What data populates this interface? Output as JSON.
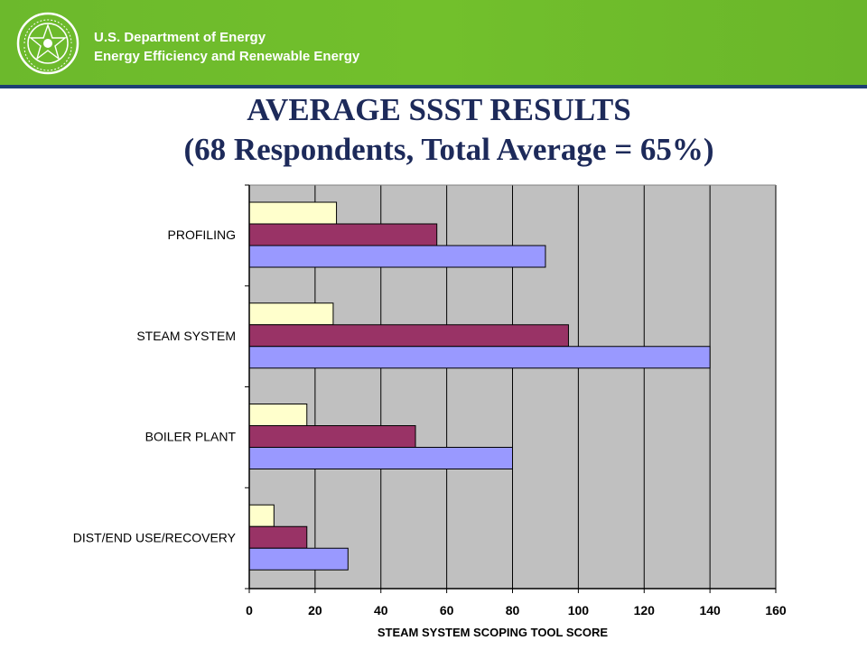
{
  "header": {
    "agency_line1": "U.S. Department of Energy",
    "agency_line2": "Energy Efficiency and Renewable Energy",
    "banner_color": "#70bd2c",
    "rule_color": "#1d3f73"
  },
  "slide": {
    "title_line1": "AVERAGE SSST RESULTS",
    "title_line2": "(68 Respondents, Total Average = 65%)"
  },
  "chart_data": {
    "type": "bar",
    "orientation": "horizontal",
    "categories": [
      "PROFILING",
      "STEAM SYSTEM",
      "BOILER PLANT",
      "DIST/END USE/RECOVERY"
    ],
    "series": [
      {
        "values": [
          26.5,
          25.5,
          17.5,
          7.5
        ],
        "color": "#ffffcc"
      },
      {
        "values": [
          57,
          97,
          50.5,
          17.5
        ],
        "color": "#993366"
      },
      {
        "values": [
          90,
          140,
          80,
          30
        ],
        "color": "#9999ff"
      }
    ],
    "xlabel": "STEAM SYSTEM SCOPING TOOL SCORE",
    "ylabel": "",
    "xlim": [
      0,
      160
    ],
    "xticks": [
      0,
      20,
      40,
      60,
      80,
      100,
      120,
      140,
      160
    ],
    "grid": true,
    "legend": "none",
    "plot_background": "#c0c0c0"
  }
}
